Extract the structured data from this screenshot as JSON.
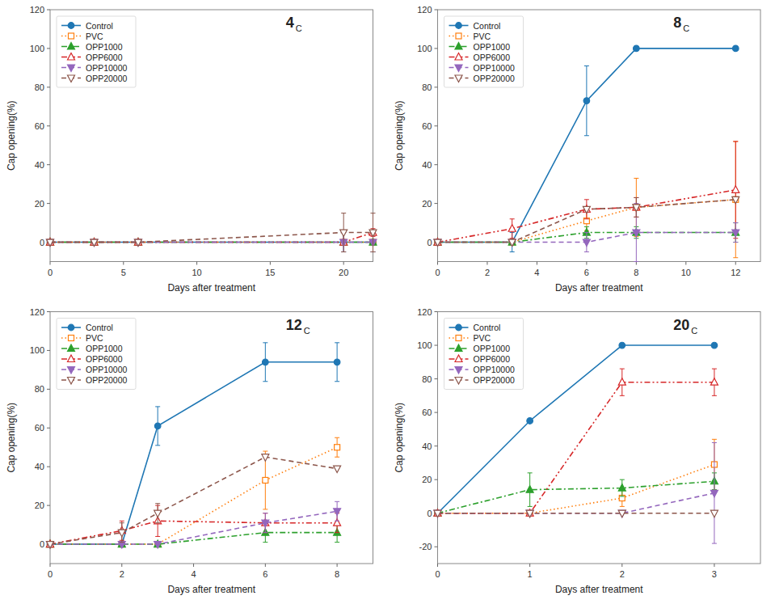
{
  "chart_data": [
    {
      "type": "line",
      "title": "4",
      "subtitle": "C",
      "xlabel": "Days after treatment",
      "ylabel": "Cap opening(%)",
      "xlim": [
        0,
        22
      ],
      "xticks": [
        0,
        5,
        10,
        15,
        20
      ],
      "ylim": [
        -10,
        120
      ],
      "yticks": [
        0,
        20,
        40,
        60,
        80,
        100,
        120
      ],
      "grid": false,
      "legend": "upper left",
      "x": [
        0,
        3,
        6,
        20,
        22
      ],
      "series": [
        {
          "name": "Control",
          "color": "#1f77b4",
          "marker": "circle",
          "line_style": "solid",
          "values": [
            0,
            0,
            0,
            0,
            0
          ],
          "errors": [
            0,
            0,
            0,
            5,
            5
          ]
        },
        {
          "name": "PVC",
          "color": "#ff7f0e",
          "marker": "square-open",
          "line_style": "dotted",
          "values": [
            0,
            0,
            0,
            0,
            0
          ],
          "errors": [
            0,
            0,
            0,
            0,
            0
          ]
        },
        {
          "name": "OPP1000",
          "color": "#2ca02c",
          "marker": "triangle-up",
          "line_style": "dashdot",
          "values": [
            0,
            0,
            0,
            0,
            0
          ],
          "errors": [
            0,
            0,
            0,
            0,
            0
          ]
        },
        {
          "name": "OPP6000",
          "color": "#d62728",
          "marker": "triangle-up-open",
          "line_style": "dashdotdot",
          "values": [
            0,
            0,
            0,
            0,
            5
          ],
          "errors": [
            0,
            0,
            0,
            0,
            2
          ]
        },
        {
          "name": "OPP10000",
          "color": "#9467bd",
          "marker": "triangle-down",
          "line_style": "dashed",
          "values": [
            0,
            0,
            0,
            0,
            0
          ],
          "errors": [
            0,
            0,
            0,
            5,
            5
          ]
        },
        {
          "name": "OPP20000",
          "color": "#8c564b",
          "marker": "triangle-down-open",
          "line_style": "dashed",
          "values": [
            0,
            0,
            0,
            5,
            5
          ],
          "errors": [
            0,
            0,
            0,
            10,
            10
          ]
        }
      ]
    },
    {
      "type": "line",
      "title": "8",
      "subtitle": "C",
      "xlabel": "Days after treatment",
      "ylabel": "Cap opening(%)",
      "xlim": [
        0,
        13
      ],
      "xticks": [
        0,
        2,
        4,
        6,
        8,
        10,
        12
      ],
      "ylim": [
        -10,
        120
      ],
      "yticks": [
        0,
        20,
        40,
        60,
        80,
        100,
        120
      ],
      "grid": false,
      "legend": "upper left",
      "x": [
        0,
        3,
        6,
        8,
        12
      ],
      "series": [
        {
          "name": "Control",
          "color": "#1f77b4",
          "marker": "circle",
          "line_style": "solid",
          "values": [
            0,
            0,
            73,
            100,
            100
          ],
          "errors": [
            0,
            5,
            18,
            0,
            0
          ]
        },
        {
          "name": "PVC",
          "color": "#ff7f0e",
          "marker": "square-open",
          "line_style": "dotted",
          "values": [
            0,
            0,
            11,
            18,
            22
          ],
          "errors": [
            0,
            0,
            5,
            15,
            30
          ]
        },
        {
          "name": "OPP1000",
          "color": "#2ca02c",
          "marker": "triangle-up",
          "line_style": "dashdot",
          "values": [
            0,
            0,
            5,
            5,
            5
          ],
          "errors": [
            0,
            0,
            3,
            3,
            5
          ]
        },
        {
          "name": "OPP6000",
          "color": "#d62728",
          "marker": "triangle-up-open",
          "line_style": "dashdotdot",
          "values": [
            0,
            7,
            17,
            18,
            27
          ],
          "errors": [
            0,
            5,
            5,
            5,
            25
          ]
        },
        {
          "name": "OPP10000",
          "color": "#9467bd",
          "marker": "triangle-down",
          "line_style": "dashed",
          "values": [
            0,
            0,
            0,
            5,
            5
          ],
          "errors": [
            0,
            0,
            5,
            15,
            5
          ]
        },
        {
          "name": "OPP20000",
          "color": "#8c564b",
          "marker": "triangle-down-open",
          "line_style": "dashed",
          "values": [
            0,
            0,
            17,
            18,
            22
          ],
          "errors": [
            0,
            0,
            0,
            5,
            0
          ]
        }
      ]
    },
    {
      "type": "line",
      "title": "12",
      "subtitle": "C",
      "xlabel": "Days after treatment",
      "ylabel": "Cap opening(%)",
      "xlim": [
        0,
        9
      ],
      "xticks": [
        0,
        2,
        4,
        6,
        8
      ],
      "ylim": [
        -10,
        120
      ],
      "yticks": [
        0,
        20,
        40,
        60,
        80,
        100,
        120
      ],
      "grid": false,
      "legend": "upper left",
      "x": [
        0,
        2,
        3,
        6,
        8
      ],
      "series": [
        {
          "name": "Control",
          "color": "#1f77b4",
          "marker": "circle",
          "line_style": "solid",
          "values": [
            0,
            0,
            61,
            94,
            94
          ],
          "errors": [
            0,
            0,
            10,
            10,
            10
          ]
        },
        {
          "name": "PVC",
          "color": "#ff7f0e",
          "marker": "square-open",
          "line_style": "dotted",
          "values": [
            0,
            0,
            0,
            33,
            50
          ],
          "errors": [
            0,
            0,
            0,
            15,
            5
          ]
        },
        {
          "name": "OPP1000",
          "color": "#2ca02c",
          "marker": "triangle-up",
          "line_style": "dashdot",
          "values": [
            0,
            0,
            0,
            6,
            6
          ],
          "errors": [
            0,
            0,
            0,
            5,
            5
          ]
        },
        {
          "name": "OPP6000",
          "color": "#d62728",
          "marker": "triangle-up-open",
          "line_style": "dashdotdot",
          "values": [
            0,
            7,
            12,
            11,
            11
          ],
          "errors": [
            0,
            5,
            8,
            5,
            5
          ]
        },
        {
          "name": "OPP10000",
          "color": "#9467bd",
          "marker": "triangle-down",
          "line_style": "dashed",
          "values": [
            0,
            0,
            0,
            11,
            17
          ],
          "errors": [
            0,
            0,
            0,
            5,
            5
          ]
        },
        {
          "name": "OPP20000",
          "color": "#8c564b",
          "marker": "triangle-down-open",
          "line_style": "dashed",
          "values": [
            0,
            6,
            16,
            45,
            39
          ],
          "errors": [
            0,
            5,
            5,
            0,
            0
          ]
        }
      ]
    },
    {
      "type": "line",
      "title": "20",
      "subtitle": "C",
      "xlabel": "Days after treatment",
      "ylabel": "Cap opening(%)",
      "xlim": [
        0,
        3.5
      ],
      "xticks": [
        0,
        1,
        2,
        3
      ],
      "ylim": [
        -30,
        120
      ],
      "yticks": [
        -20,
        0,
        20,
        40,
        60,
        80,
        100,
        120
      ],
      "grid": false,
      "legend": "upper left",
      "x": [
        0,
        1,
        2,
        3
      ],
      "series": [
        {
          "name": "Control",
          "color": "#1f77b4",
          "marker": "circle",
          "line_style": "solid",
          "values": [
            0,
            55,
            100,
            100
          ],
          "errors": [
            0,
            0,
            0,
            0
          ]
        },
        {
          "name": "PVC",
          "color": "#ff7f0e",
          "marker": "square-open",
          "line_style": "dotted",
          "values": [
            0,
            0,
            9,
            29
          ],
          "errors": [
            0,
            0,
            5,
            15
          ]
        },
        {
          "name": "OPP1000",
          "color": "#2ca02c",
          "marker": "triangle-up",
          "line_style": "dashdot",
          "values": [
            0,
            14,
            15,
            19
          ],
          "errors": [
            0,
            10,
            5,
            5
          ]
        },
        {
          "name": "OPP6000",
          "color": "#d62728",
          "marker": "triangle-up-open",
          "line_style": "dashdotdot",
          "values": [
            0,
            0,
            78,
            78
          ],
          "errors": [
            0,
            0,
            8,
            8
          ]
        },
        {
          "name": "OPP10000",
          "color": "#9467bd",
          "marker": "triangle-down",
          "line_style": "dashed",
          "values": [
            0,
            0,
            0,
            12
          ],
          "errors": [
            0,
            0,
            0,
            30
          ]
        },
        {
          "name": "OPP20000",
          "color": "#8c564b",
          "marker": "triangle-down-open",
          "line_style": "dashed",
          "values": [
            0,
            0,
            0,
            0
          ],
          "errors": [
            0,
            0,
            0,
            0
          ]
        }
      ]
    }
  ]
}
